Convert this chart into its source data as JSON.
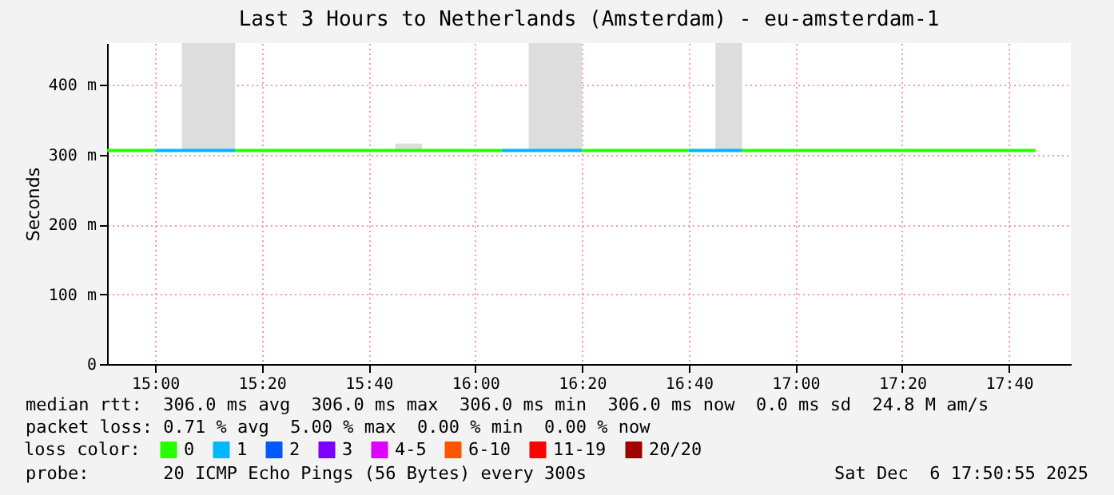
{
  "chart_data": {
    "type": "line",
    "title": "Last 3 Hours to Netherlands (Amsterdam) - eu-amsterdam-1",
    "ylabel": "Seconds",
    "legend_title": "loss color:",
    "legend": "bottom",
    "grid": true,
    "xlim": [
      14.85,
      17.86
    ],
    "xticks": [
      {
        "value": 15,
        "label": "15:00"
      },
      {
        "value": 15.3333,
        "label": "15:20"
      },
      {
        "value": 15.6667,
        "label": "15:40"
      },
      {
        "value": 16,
        "label": "16:00"
      },
      {
        "value": 16.3333,
        "label": "16:20"
      },
      {
        "value": 16.6667,
        "label": "16:40"
      },
      {
        "value": 17,
        "label": "17:00"
      },
      {
        "value": 17.3333,
        "label": "17:20"
      },
      {
        "value": 17.6667,
        "label": "17:40"
      }
    ],
    "ylim": [
      0,
      460
    ],
    "yticks": [
      0,
      {
        "value": 100,
        "label": "100 m"
      },
      {
        "value": 200,
        "label": "200 m"
      },
      {
        "value": 300,
        "label": "300 m"
      },
      {
        "value": 400,
        "label": "400 m"
      }
    ],
    "series": [
      {
        "name": "0",
        "color": "#26ff00",
        "x": [
          14.85,
          15.0,
          15.1,
          15.25,
          15.75,
          15.8333,
          16.0833,
          16.2,
          16.3333,
          16.6667,
          16.75,
          16.8333,
          17.75
        ],
        "values": [
          306,
          306,
          null,
          306,
          306,
          306,
          306,
          null,
          306,
          306,
          null,
          306,
          306
        ],
        "lower": [
          null,
          null,
          null,
          null,
          306,
          306,
          null,
          null,
          null,
          null,
          null,
          null,
          null
        ],
        "upper": [
          null,
          null,
          null,
          null,
          316,
          316,
          null,
          null,
          null,
          null,
          null,
          null,
          null
        ]
      },
      {
        "name": "1",
        "color": "#00b8ff",
        "x": [
          15.0,
          15.0833,
          15.25,
          15.3,
          16.0833,
          16.1667,
          16.3333,
          16.4,
          16.6667,
          16.75,
          16.8333
        ],
        "values": [
          306,
          306,
          306,
          null,
          306,
          306,
          306,
          null,
          306,
          306,
          306
        ],
        "lower": [
          null,
          306,
          306,
          null,
          null,
          306,
          306,
          null,
          null,
          306,
          306
        ],
        "upper": [
          null,
          460,
          460,
          null,
          null,
          460,
          460,
          null,
          null,
          460,
          460
        ]
      },
      {
        "name": "2",
        "color": "#0059ff"
      },
      {
        "name": "3",
        "color": "#7e00ff"
      },
      {
        "name": "4-5",
        "color": "#dd00ff"
      },
      {
        "name": "6-10",
        "color": "#ff5500"
      },
      {
        "name": "11-19",
        "color": "#ff0000"
      },
      {
        "name": "20/20",
        "color": "#a10000"
      }
    ],
    "annotations": [
      "median rtt:  306.0 ms avg  306.0 ms max  306.0 ms min  306.0 ms now  0.0 ms sd  24.8 M am/s",
      "packet loss: 0.71 % avg  5.00 % max  0.00 % min  0.00 % now",
      "probe:       20 ICMP Echo Pings (56 Bytes) every 300s",
      "Sat Dec  6 17:50:55 2025"
    ]
  }
}
